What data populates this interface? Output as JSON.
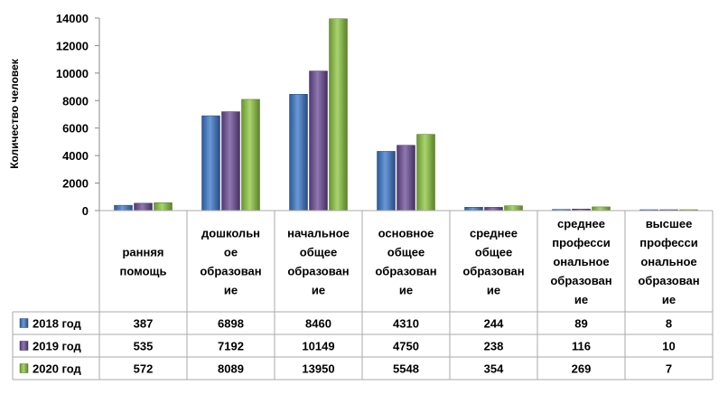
{
  "chart_data": {
    "type": "bar",
    "ylabel": "Количество человек",
    "ylim": [
      0,
      14000
    ],
    "yticks": [
      0,
      2000,
      4000,
      6000,
      8000,
      10000,
      12000,
      14000
    ],
    "grid": false,
    "legend": "table-left",
    "categories": [
      [
        "ранняя",
        "помощь"
      ],
      [
        "дошкольн",
        "ое",
        "образован",
        "ие"
      ],
      [
        "начальное",
        "общее",
        "образован",
        "ие"
      ],
      [
        "основное",
        "общее",
        "образован",
        "ие"
      ],
      [
        "среднее",
        "общее",
        "образован",
        "ие"
      ],
      [
        "среднее",
        "професси",
        "ональное",
        "образован",
        "ие"
      ],
      [
        "высшее",
        "професси",
        "ональное",
        "образован",
        "ие"
      ]
    ],
    "series": [
      {
        "name": "2018 год",
        "color": "#3a76c9",
        "values": [
          387,
          6898,
          8460,
          4310,
          244,
          89,
          8
        ]
      },
      {
        "name": "2019 год",
        "color": "#6a4a96",
        "values": [
          535,
          7192,
          10149,
          4750,
          238,
          116,
          10
        ]
      },
      {
        "name": "2020 год",
        "color": "#8cc63f",
        "values": [
          572,
          8089,
          13950,
          5548,
          354,
          269,
          7
        ]
      }
    ]
  }
}
